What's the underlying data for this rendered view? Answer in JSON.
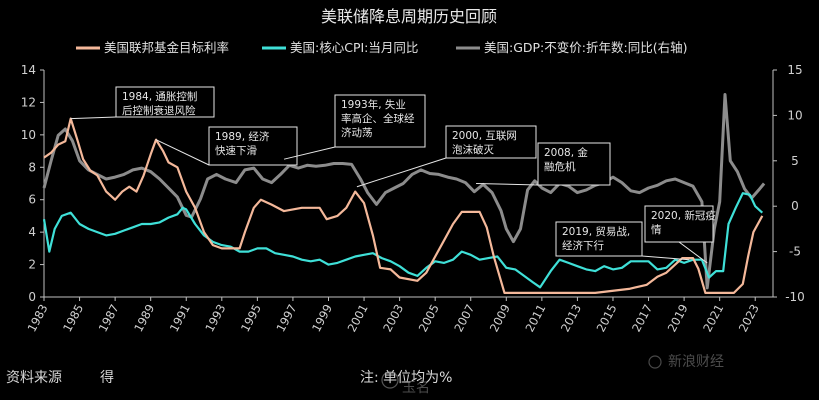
{
  "chart_data": {
    "type": "line",
    "title": "美联储降息周期历史回顾",
    "x_ticks": [
      "1983",
      "1985",
      "1987",
      "1989",
      "1991",
      "1993",
      "1995",
      "1997",
      "1999",
      "2001",
      "2003",
      "2005",
      "2007",
      "2009",
      "2011",
      "2013",
      "2015",
      "2017",
      "2019",
      "2021",
      "2023"
    ],
    "xlim": [
      1983,
      2024
    ],
    "y_left": {
      "ticks": [
        "0",
        "2",
        "4",
        "6",
        "8",
        "10",
        "12",
        "14"
      ],
      "ylim": [
        0,
        14
      ]
    },
    "y_right": {
      "ticks": [
        "-10",
        "-5",
        "0",
        "5",
        "10",
        "15"
      ],
      "ylim": [
        -10,
        15
      ]
    },
    "grid": false,
    "legend_placement": "top",
    "series": [
      {
        "name": "美国联邦基金目标利率",
        "axis": "left",
        "color": "#f4b89a",
        "points": [
          [
            1983.0,
            8.6
          ],
          [
            1983.4,
            8.9
          ],
          [
            1983.8,
            9.4
          ],
          [
            1984.2,
            9.6
          ],
          [
            1984.5,
            11.0
          ],
          [
            1984.9,
            9.6
          ],
          [
            1985.2,
            8.5
          ],
          [
            1985.6,
            7.8
          ],
          [
            1986.0,
            7.5
          ],
          [
            1986.5,
            6.5
          ],
          [
            1987.0,
            6.0
          ],
          [
            1987.4,
            6.5
          ],
          [
            1987.8,
            6.8
          ],
          [
            1988.2,
            6.5
          ],
          [
            1988.6,
            7.5
          ],
          [
            1989.0,
            8.8
          ],
          [
            1989.3,
            9.7
          ],
          [
            1989.7,
            9.0
          ],
          [
            1990.0,
            8.3
          ],
          [
            1990.5,
            8.0
          ],
          [
            1991.0,
            6.5
          ],
          [
            1991.5,
            5.5
          ],
          [
            1992.0,
            4.0
          ],
          [
            1992.5,
            3.2
          ],
          [
            1993.0,
            3.0
          ],
          [
            1994.0,
            3.0
          ],
          [
            1994.3,
            4.0
          ],
          [
            1994.8,
            5.5
          ],
          [
            1995.2,
            6.0
          ],
          [
            1995.8,
            5.7
          ],
          [
            1996.5,
            5.3
          ],
          [
            1997.5,
            5.5
          ],
          [
            1998.5,
            5.5
          ],
          [
            1998.9,
            4.8
          ],
          [
            1999.5,
            5.0
          ],
          [
            2000.0,
            5.5
          ],
          [
            2000.5,
            6.5
          ],
          [
            2001.0,
            5.8
          ],
          [
            2001.5,
            3.8
          ],
          [
            2001.9,
            1.8
          ],
          [
            2002.5,
            1.7
          ],
          [
            2003.0,
            1.2
          ],
          [
            2004.0,
            1.0
          ],
          [
            2004.5,
            1.5
          ],
          [
            2005.0,
            2.5
          ],
          [
            2005.5,
            3.5
          ],
          [
            2006.0,
            4.5
          ],
          [
            2006.5,
            5.25
          ],
          [
            2007.5,
            5.25
          ],
          [
            2007.9,
            4.3
          ],
          [
            2008.3,
            2.5
          ],
          [
            2008.9,
            0.25
          ],
          [
            2010.0,
            0.25
          ],
          [
            2012.0,
            0.25
          ],
          [
            2014.0,
            0.25
          ],
          [
            2015.9,
            0.5
          ],
          [
            2016.9,
            0.75
          ],
          [
            2017.5,
            1.25
          ],
          [
            2018.0,
            1.5
          ],
          [
            2018.9,
            2.4
          ],
          [
            2019.5,
            2.4
          ],
          [
            2019.8,
            1.75
          ],
          [
            2020.2,
            0.25
          ],
          [
            2021.8,
            0.25
          ],
          [
            2022.3,
            0.8
          ],
          [
            2022.6,
            2.5
          ],
          [
            2022.9,
            4.0
          ],
          [
            2023.4,
            5.0
          ]
        ]
      },
      {
        "name": "美国:核心CPI:当月同比",
        "axis": "left",
        "color": "#3fe0d8",
        "points": [
          [
            1983.0,
            4.8
          ],
          [
            1983.3,
            2.8
          ],
          [
            1983.6,
            4.2
          ],
          [
            1984.0,
            5.0
          ],
          [
            1984.5,
            5.2
          ],
          [
            1985.0,
            4.5
          ],
          [
            1985.5,
            4.2
          ],
          [
            1986.0,
            4.0
          ],
          [
            1986.5,
            3.8
          ],
          [
            1987.0,
            3.9
          ],
          [
            1987.5,
            4.1
          ],
          [
            1988.0,
            4.3
          ],
          [
            1988.5,
            4.5
          ],
          [
            1989.0,
            4.5
          ],
          [
            1989.5,
            4.6
          ],
          [
            1990.0,
            4.9
          ],
          [
            1990.5,
            5.1
          ],
          [
            1990.8,
            5.5
          ],
          [
            1991.0,
            5.4
          ],
          [
            1991.5,
            4.5
          ],
          [
            1992.0,
            3.8
          ],
          [
            1992.5,
            3.4
          ],
          [
            1993.0,
            3.2
          ],
          [
            1993.5,
            3.1
          ],
          [
            1994.0,
            2.8
          ],
          [
            1994.5,
            2.8
          ],
          [
            1995.0,
            3.0
          ],
          [
            1995.5,
            3.0
          ],
          [
            1996.0,
            2.7
          ],
          [
            1996.5,
            2.6
          ],
          [
            1997.0,
            2.5
          ],
          [
            1997.5,
            2.3
          ],
          [
            1998.0,
            2.2
          ],
          [
            1998.5,
            2.3
          ],
          [
            1999.0,
            2.0
          ],
          [
            1999.5,
            2.1
          ],
          [
            2000.0,
            2.3
          ],
          [
            2000.5,
            2.5
          ],
          [
            2001.0,
            2.6
          ],
          [
            2001.5,
            2.7
          ],
          [
            2002.0,
            2.4
          ],
          [
            2002.5,
            2.2
          ],
          [
            2003.0,
            1.9
          ],
          [
            2003.5,
            1.5
          ],
          [
            2004.0,
            1.3
          ],
          [
            2004.5,
            1.8
          ],
          [
            2005.0,
            2.2
          ],
          [
            2005.5,
            2.1
          ],
          [
            2006.0,
            2.3
          ],
          [
            2006.5,
            2.8
          ],
          [
            2007.0,
            2.6
          ],
          [
            2007.5,
            2.3
          ],
          [
            2008.0,
            2.4
          ],
          [
            2008.5,
            2.5
          ],
          [
            2009.0,
            1.8
          ],
          [
            2009.5,
            1.7
          ],
          [
            2010.0,
            1.3
          ],
          [
            2010.5,
            0.9
          ],
          [
            2010.9,
            0.6
          ],
          [
            2011.5,
            1.6
          ],
          [
            2012.0,
            2.3
          ],
          [
            2012.5,
            2.1
          ],
          [
            2013.0,
            1.9
          ],
          [
            2013.5,
            1.7
          ],
          [
            2014.0,
            1.6
          ],
          [
            2014.5,
            1.9
          ],
          [
            2015.0,
            1.7
          ],
          [
            2015.5,
            1.8
          ],
          [
            2016.0,
            2.2
          ],
          [
            2016.5,
            2.2
          ],
          [
            2017.0,
            2.2
          ],
          [
            2017.5,
            1.7
          ],
          [
            2018.0,
            1.8
          ],
          [
            2018.5,
            2.3
          ],
          [
            2019.0,
            2.1
          ],
          [
            2019.5,
            2.3
          ],
          [
            2020.0,
            2.3
          ],
          [
            2020.4,
            1.2
          ],
          [
            2020.8,
            1.6
          ],
          [
            2021.2,
            1.6
          ],
          [
            2021.5,
            4.5
          ],
          [
            2021.9,
            5.5
          ],
          [
            2022.3,
            6.4
          ],
          [
            2022.7,
            6.3
          ],
          [
            2023.0,
            5.6
          ],
          [
            2023.4,
            5.2
          ]
        ]
      },
      {
        "name": "美国:GDP:不变价:折年数:同比(右轴)",
        "axis": "right",
        "color": "#8c8c8c",
        "points": [
          [
            1983.0,
            2.0
          ],
          [
            1983.4,
            5.0
          ],
          [
            1983.8,
            7.8
          ],
          [
            1984.2,
            8.5
          ],
          [
            1984.6,
            7.2
          ],
          [
            1985.0,
            5.0
          ],
          [
            1985.5,
            4.0
          ],
          [
            1986.0,
            3.5
          ],
          [
            1986.5,
            3.0
          ],
          [
            1987.0,
            3.2
          ],
          [
            1987.5,
            3.5
          ],
          [
            1988.0,
            4.0
          ],
          [
            1988.5,
            4.2
          ],
          [
            1989.0,
            3.8
          ],
          [
            1989.5,
            3.0
          ],
          [
            1990.0,
            2.0
          ],
          [
            1990.5,
            1.0
          ],
          [
            1991.0,
            -1.0
          ],
          [
            1991.3,
            -1.2
          ],
          [
            1991.8,
            0.8
          ],
          [
            1992.2,
            3.0
          ],
          [
            1992.7,
            3.5
          ],
          [
            1993.2,
            3.0
          ],
          [
            1993.8,
            2.6
          ],
          [
            1994.3,
            4.0
          ],
          [
            1994.8,
            4.2
          ],
          [
            1995.3,
            3.0
          ],
          [
            1995.8,
            2.6
          ],
          [
            1996.3,
            3.5
          ],
          [
            1996.8,
            4.5
          ],
          [
            1997.3,
            4.2
          ],
          [
            1997.8,
            4.5
          ],
          [
            1998.3,
            4.4
          ],
          [
            1998.8,
            4.5
          ],
          [
            1999.3,
            4.7
          ],
          [
            1999.8,
            4.7
          ],
          [
            2000.3,
            4.6
          ],
          [
            2000.8,
            3.0
          ],
          [
            2001.2,
            1.5
          ],
          [
            2001.7,
            0.2
          ],
          [
            2002.2,
            1.5
          ],
          [
            2002.7,
            2.0
          ],
          [
            2003.2,
            2.5
          ],
          [
            2003.7,
            3.5
          ],
          [
            2004.2,
            4.0
          ],
          [
            2004.7,
            3.6
          ],
          [
            2005.2,
            3.5
          ],
          [
            2005.7,
            3.2
          ],
          [
            2006.2,
            3.0
          ],
          [
            2006.7,
            2.6
          ],
          [
            2007.2,
            1.6
          ],
          [
            2007.7,
            2.4
          ],
          [
            2008.2,
            1.5
          ],
          [
            2008.7,
            -0.5
          ],
          [
            2009.0,
            -2.5
          ],
          [
            2009.4,
            -3.9
          ],
          [
            2009.8,
            -2.5
          ],
          [
            2010.2,
            1.8
          ],
          [
            2010.6,
            2.8
          ],
          [
            2011.0,
            2.0
          ],
          [
            2011.5,
            1.5
          ],
          [
            2012.0,
            2.5
          ],
          [
            2012.5,
            2.2
          ],
          [
            2013.0,
            1.5
          ],
          [
            2013.5,
            1.8
          ],
          [
            2014.0,
            2.3
          ],
          [
            2014.5,
            2.6
          ],
          [
            2015.0,
            3.2
          ],
          [
            2015.5,
            2.6
          ],
          [
            2016.0,
            1.7
          ],
          [
            2016.5,
            1.5
          ],
          [
            2017.0,
            2.0
          ],
          [
            2017.5,
            2.3
          ],
          [
            2018.0,
            2.8
          ],
          [
            2018.5,
            3.0
          ],
          [
            2019.0,
            2.6
          ],
          [
            2019.5,
            2.2
          ],
          [
            2020.0,
            0.5
          ],
          [
            2020.3,
            -9.0
          ],
          [
            2020.7,
            -2.5
          ],
          [
            2021.0,
            0.5
          ],
          [
            2021.3,
            12.3
          ],
          [
            2021.6,
            5.0
          ],
          [
            2022.0,
            3.8
          ],
          [
            2022.4,
            1.9
          ],
          [
            2022.8,
            0.9
          ],
          [
            2023.2,
            1.8
          ],
          [
            2023.5,
            2.5
          ]
        ]
      }
    ],
    "annotations": [
      {
        "lines": [
          "1984, 通胀控制",
          "后控制衰退风险"
        ],
        "x": 1984.5,
        "y": 11.0
      },
      {
        "lines": [
          "1989, 经济",
          "快速下滑"
        ],
        "x": 1989.3,
        "y": 9.7
      },
      {
        "lines": [
          "1993年, 失业",
          "率高企、全球经",
          "济动荡"
        ],
        "x": 1996.5,
        "y": 8.5
      },
      {
        "lines": [
          "2000, 互联网",
          "泡沫破灭"
        ],
        "x": 2000.6,
        "y": 6.8
      },
      {
        "lines": [
          "2008, 金",
          "融危机"
        ],
        "x": 2007.3,
        "y": 7.0
      },
      {
        "lines": [
          "2019, 贸易战,",
          "经济下行"
        ],
        "x": 2019.3,
        "y": 2.3
      },
      {
        "lines": [
          "2020, 新冠疫",
          "情"
        ],
        "x": 2020.3,
        "y": 2.1
      }
    ]
  },
  "footer": {
    "source_label": "资料来源",
    "source_rest": "得",
    "note": "注: 单位均为%"
  },
  "watermark": {
    "platform_text": "新浪财经",
    "user_text": "玉名"
  }
}
